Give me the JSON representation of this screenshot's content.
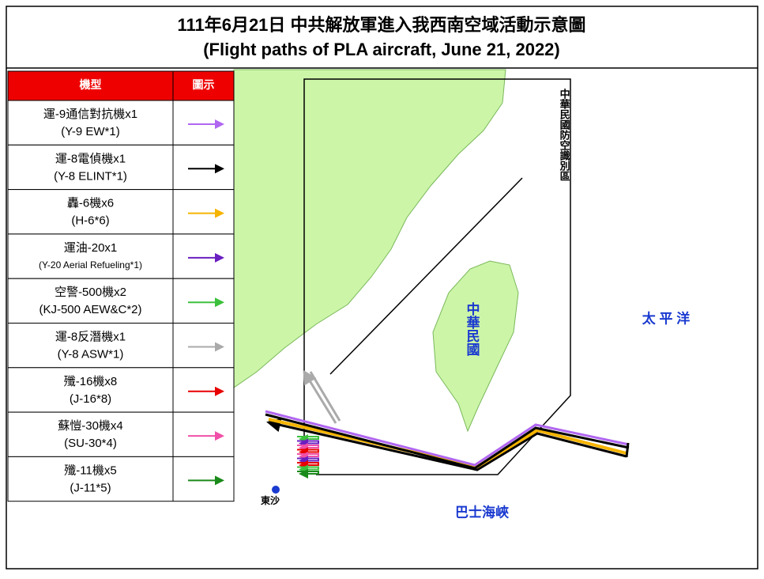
{
  "header": {
    "title": "111年6月21日 中共解放軍進入我西南空域活動示意圖",
    "subtitle": "(Flight paths of PLA aircraft, June 21, 2022)"
  },
  "legend": {
    "columns": [
      "機型",
      "圖示"
    ],
    "rows": [
      {
        "name": "運-9通信對抗機x1",
        "english": "(Y-9 EW*1)",
        "color": "#b066f0"
      },
      {
        "name": "運-8電偵機x1",
        "english": "(Y-8 ELINT*1)",
        "color": "#000000"
      },
      {
        "name": "轟-6機x6",
        "english": "(H-6*6)",
        "color": "#f5b400"
      },
      {
        "name": "運油-20x1",
        "english": "(Y-20 Aerial Refueling*1)",
        "color": "#6a1fc0"
      },
      {
        "name": "空警-500機x2",
        "english": "(KJ-500 AEW&C*2)",
        "color": "#3cc03c"
      },
      {
        "name": "運-8反潛機x1",
        "english": "(Y-8 ASW*1)",
        "color": "#aaaaaa"
      },
      {
        "name": "殲-16機x8",
        "english": "(J-16*8)",
        "color": "#e80000"
      },
      {
        "name": "蘇愷-30機x4",
        "english": "(SU-30*4)",
        "color": "#f050a8"
      },
      {
        "name": "殲-11機x5",
        "english": "(J-11*5)",
        "color": "#1a8a1a"
      }
    ]
  },
  "map": {
    "adiz": "中華民國防空識別區",
    "taiwan": "中華民國",
    "pacific": "太 平 洋",
    "strait": "巴士海峽",
    "dongsha": "東沙"
  }
}
